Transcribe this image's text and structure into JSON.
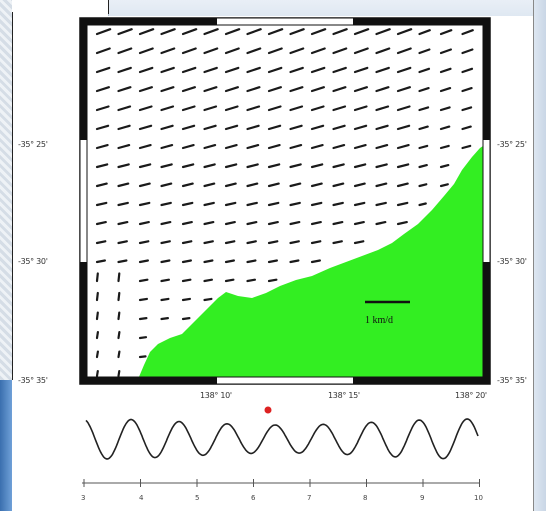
{
  "map": {
    "lat_labels": [
      "-35° 25'",
      "-35° 30'",
      "-35° 35'"
    ],
    "lon_labels": [
      "138° 10'",
      "138° 15'",
      "138° 20'"
    ],
    "scale_label": "1 km/d",
    "colors": {
      "land": "#33ee22",
      "arrow": "#1a1a1a",
      "frame": "#111111",
      "marker": "#dd2222"
    }
  },
  "timeseries": {
    "tick_labels": [
      "3",
      "4",
      "5",
      "6",
      "7",
      "8",
      "9",
      "10"
    ]
  }
}
